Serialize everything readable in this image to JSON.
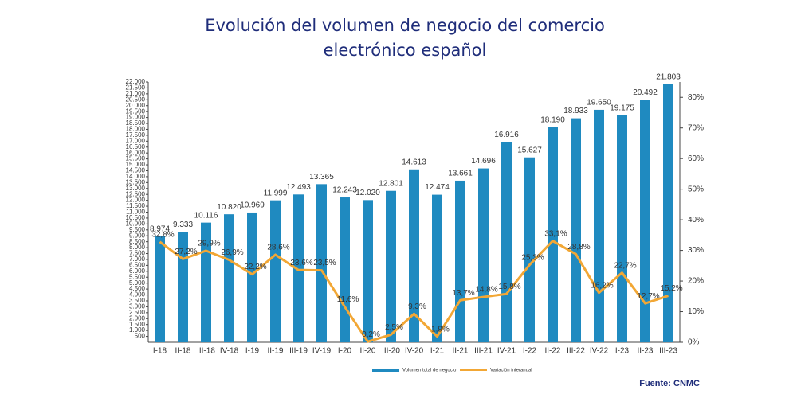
{
  "chart_data": {
    "type": "bar-line",
    "title": "Evolución del volumen de negocio del comercio",
    "subtitle": "electrónico español",
    "source": "Fuente: CNMC",
    "legend": "bottom",
    "categories": [
      "I-18",
      "II-18",
      "III-18",
      "IV-18",
      "I-19",
      "II-19",
      "III-19",
      "IV-19",
      "I-20",
      "II-20",
      "III-20",
      "IV-20",
      "I-21",
      "II-21",
      "III-21",
      "IV-21",
      "I-22",
      "II-22",
      "III-22",
      "IV-22",
      "I-23",
      "II-23",
      "III-23"
    ],
    "series": [
      {
        "name": "Volumen total de negocio",
        "type": "bar",
        "color": "#1f8ac0",
        "values": [
          8974,
          9333,
          10116,
          10820,
          10969,
          11999,
          12493,
          13365,
          12243,
          12020,
          12801,
          14613,
          12474,
          13661,
          14696,
          16916,
          15627,
          18190,
          18933,
          19650,
          19175,
          20492,
          21803
        ],
        "value_labels": [
          "8.974",
          "9.333",
          "10.116",
          "10.820",
          "10.969",
          "11.999",
          "12.493",
          "13.365",
          "12.243",
          "12.020",
          "12.801",
          "14.613",
          "12.474",
          "13.661",
          "14.696",
          "16.916",
          "15.627",
          "18.190",
          "18.933",
          "19.650",
          "19.175",
          "20.492",
          "21.803"
        ]
      },
      {
        "name": "Variación interanual",
        "type": "line",
        "axis": "y2",
        "color": "#f2a735",
        "values": [
          32.8,
          27.2,
          29.9,
          26.9,
          22.2,
          28.6,
          23.6,
          23.5,
          11.6,
          0.2,
          2.5,
          9.3,
          1.9,
          13.7,
          14.8,
          15.8,
          25.3,
          33.1,
          28.8,
          16.2,
          22.7,
          12.7,
          15.2
        ],
        "value_labels": [
          "32,8%",
          "27,2%",
          "29,9%",
          "26,9%",
          "22,2%",
          "28,6%",
          "23,6%",
          "23,5%",
          "11,6%",
          "0,2%",
          "2,5%",
          "9,3%",
          "1,9%",
          "13,7%",
          "14,8%",
          "15,8%",
          "25,3%",
          "33,1%",
          "28,8%",
          "16,2%",
          "22,7%",
          "12,7%",
          "15,2%"
        ]
      }
    ],
    "ylim": [
      0,
      22000
    ],
    "yticks": [
      500,
      {
        "value": 1000,
        "label": "1.000"
      },
      {
        "value": 1500,
        "label": "1.500"
      },
      {
        "value": 2000,
        "label": "2.000"
      },
      {
        "value": 2500,
        "label": "2.500"
      },
      {
        "value": 3000,
        "label": "3.000"
      },
      {
        "value": 3500,
        "label": "3.500"
      },
      {
        "value": 4000,
        "label": "4.000"
      },
      {
        "value": 4500,
        "label": "4.500"
      },
      {
        "value": 5000,
        "label": "5.000"
      },
      {
        "value": 5500,
        "label": "5.500"
      },
      {
        "value": 6000,
        "label": "6.000"
      },
      {
        "value": 6500,
        "label": "6.500"
      },
      {
        "value": 7000,
        "label": "7.000"
      },
      {
        "value": 7500,
        "label": "7.500"
      },
      {
        "value": 8000,
        "label": "8.000"
      },
      {
        "value": 8500,
        "label": "8.500"
      },
      {
        "value": 9000,
        "label": "9.000"
      },
      {
        "value": 9500,
        "label": "9.500"
      },
      {
        "value": 10000,
        "label": "10.000"
      },
      {
        "value": 10500,
        "label": "10.500"
      },
      {
        "value": 11000,
        "label": "11.000"
      },
      {
        "value": 11500,
        "label": "11.500"
      },
      {
        "value": 12000,
        "label": "12.000"
      },
      {
        "value": 12500,
        "label": "12.500"
      },
      {
        "value": 13000,
        "label": "13.000"
      },
      {
        "value": 13500,
        "label": "13.500"
      },
      {
        "value": 14000,
        "label": "14.000"
      },
      {
        "value": 14500,
        "label": "14.500"
      },
      {
        "value": 15000,
        "label": "15.000"
      },
      {
        "value": 15500,
        "label": "15.500"
      },
      {
        "value": 16000,
        "label": "16.000"
      },
      {
        "value": 16500,
        "label": "16.500"
      },
      {
        "value": 17000,
        "label": "17.000"
      },
      {
        "value": 17500,
        "label": "17.500"
      },
      {
        "value": 18000,
        "label": "18.000"
      },
      {
        "value": 18500,
        "label": "18.500"
      },
      {
        "value": 19000,
        "label": "19.000"
      },
      {
        "value": 19500,
        "label": "19.500"
      },
      {
        "value": 20000,
        "label": "20.000"
      },
      {
        "value": 20500,
        "label": "20.500"
      },
      {
        "value": 21000,
        "label": "21.000"
      },
      {
        "value": 21500,
        "label": "21.500"
      },
      {
        "value": 22000,
        "label": "22.000"
      }
    ],
    "y2lim": [
      0,
      85
    ],
    "y2ticks": [
      {
        "value": 0,
        "label": "0%"
      },
      {
        "value": 10,
        "label": "10%"
      },
      {
        "value": 20,
        "label": "20%"
      },
      {
        "value": 30,
        "label": "30%"
      },
      {
        "value": 40,
        "label": "40%"
      },
      {
        "value": 50,
        "label": "50%"
      },
      {
        "value": 60,
        "label": "60%"
      },
      {
        "value": 70,
        "label": "70%"
      },
      {
        "value": 80,
        "label": "80%"
      }
    ]
  }
}
